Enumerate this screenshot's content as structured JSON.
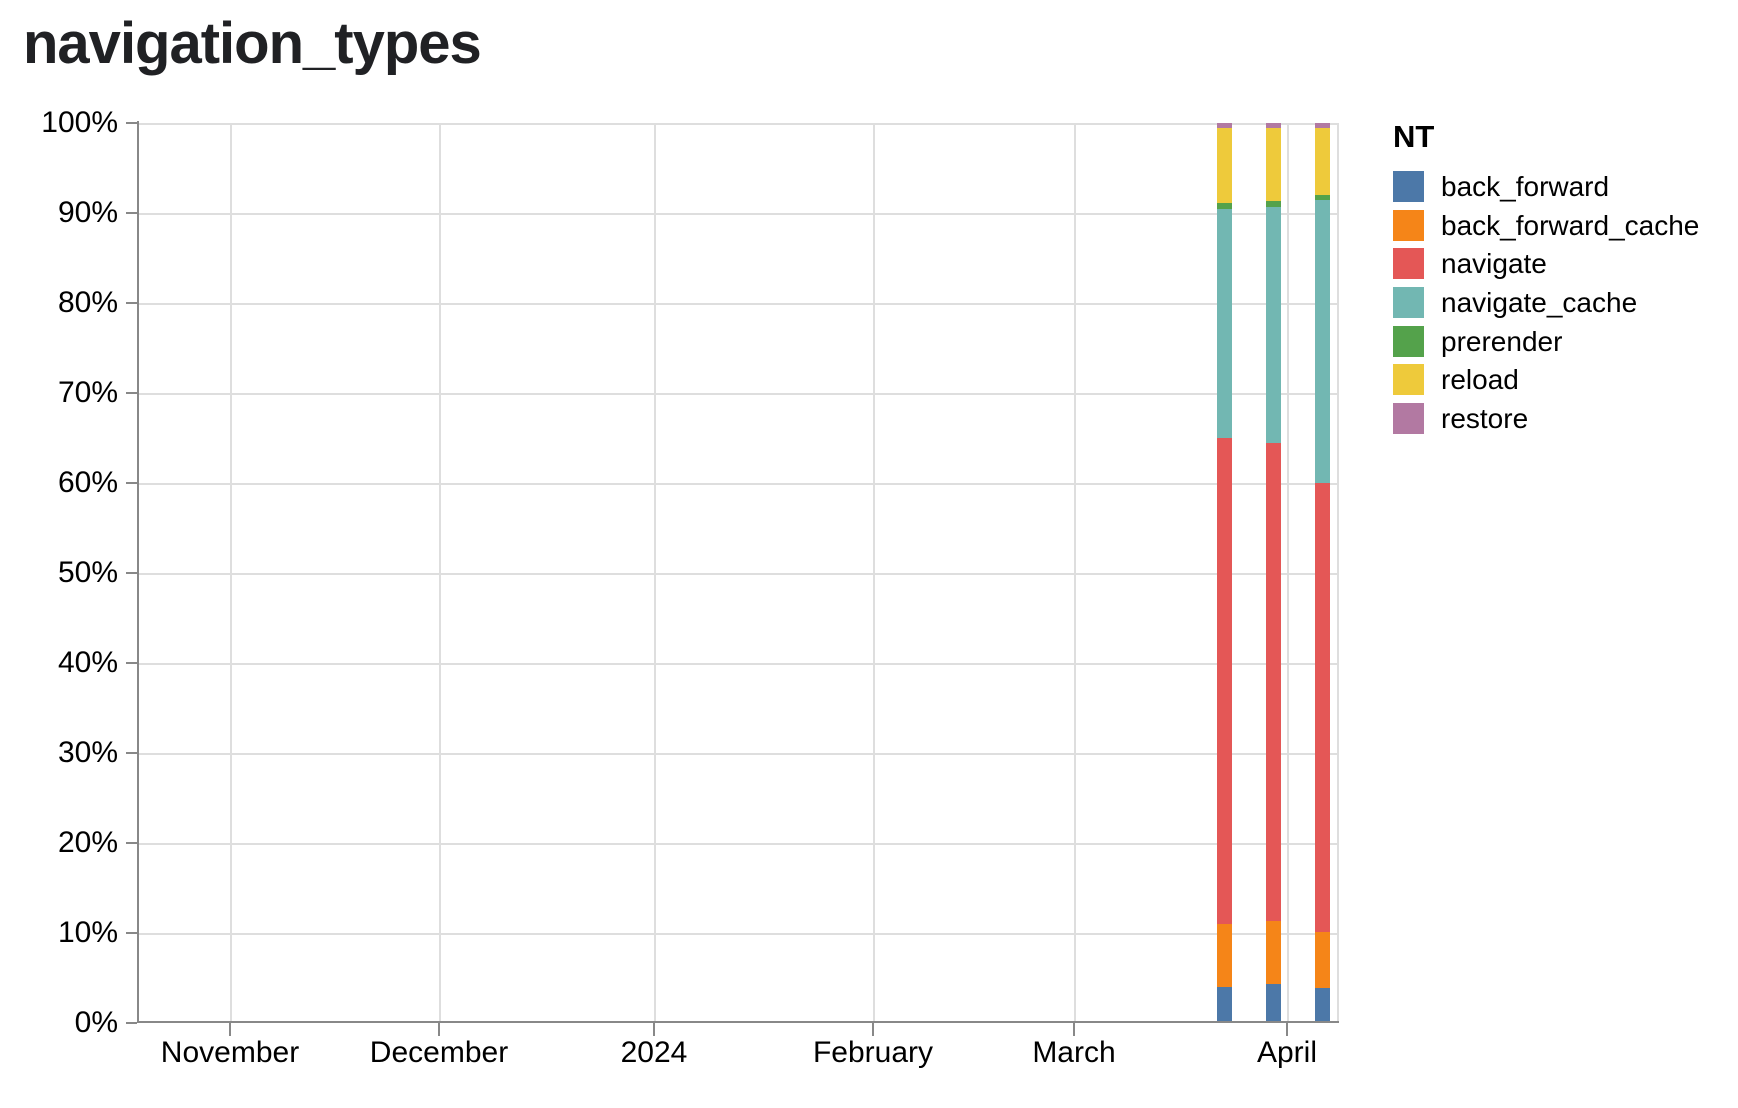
{
  "title": "navigation_types",
  "chart_data": {
    "type": "bar",
    "stacked": true,
    "normalized": true,
    "y_units": "percent_of_total",
    "title": "navigation_types",
    "legend_title": "NT",
    "legend_position": "right",
    "grid": true,
    "x_type": "time",
    "x_tick_labels": [
      "November",
      "December",
      "2024",
      "February",
      "March",
      "April"
    ],
    "x_estimated_week_dates": [
      "2024-03-23",
      "2024-03-30",
      "2024-04-06"
    ],
    "y_tick_labels": [
      "0%",
      "10%",
      "20%",
      "30%",
      "40%",
      "50%",
      "60%",
      "70%",
      "80%",
      "90%",
      "100%"
    ],
    "ylim": [
      0,
      100
    ],
    "series": [
      {
        "name": "back_forward",
        "color": "#4c78a8",
        "values": [
          4.0,
          4.3,
          3.9
        ]
      },
      {
        "name": "back_forward_cache",
        "color": "#f58518",
        "values": [
          7.0,
          7.0,
          6.2
        ]
      },
      {
        "name": "navigate",
        "color": "#e45756",
        "values": [
          54.0,
          53.1,
          49.9
        ]
      },
      {
        "name": "navigate_cache",
        "color": "#72b7b2",
        "values": [
          25.5,
          26.3,
          31.4
        ]
      },
      {
        "name": "prerender",
        "color": "#54a24b",
        "values": [
          0.6,
          0.6,
          0.6
        ]
      },
      {
        "name": "reload",
        "color": "#eeca3b",
        "values": [
          8.4,
          8.2,
          7.5
        ]
      },
      {
        "name": "restore",
        "color": "#b279a2",
        "values": [
          0.5,
          0.5,
          0.5
        ]
      }
    ]
  },
  "legend": {
    "title": "NT",
    "items": [
      {
        "label": "back_forward",
        "color": "#4c78a8"
      },
      {
        "label": "back_forward_cache",
        "color": "#f58518"
      },
      {
        "label": "navigate",
        "color": "#e45756"
      },
      {
        "label": "navigate_cache",
        "color": "#72b7b2"
      },
      {
        "label": "prerender",
        "color": "#54a24b"
      },
      {
        "label": "reload",
        "color": "#eeca3b"
      },
      {
        "label": "restore",
        "color": "#b279a2"
      }
    ]
  },
  "colors": {
    "background": "#ffffff",
    "grid": "#dedede",
    "axis": "#888888",
    "tick_label": "#000000",
    "title_text": "#202124"
  }
}
